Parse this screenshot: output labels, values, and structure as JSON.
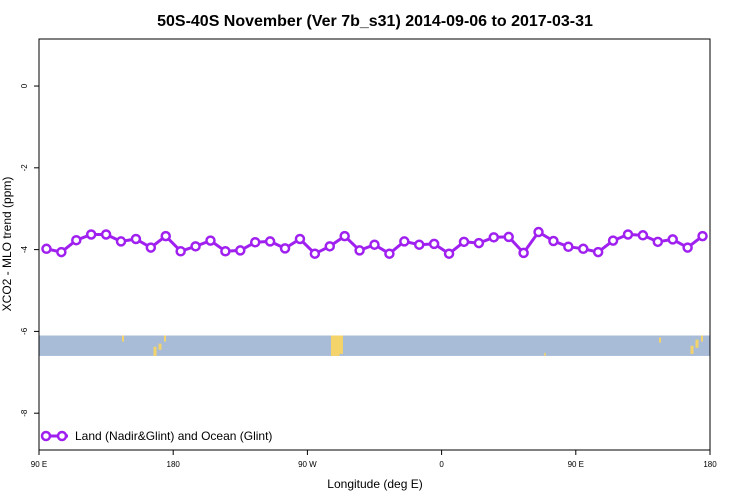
{
  "chart_data": {
    "type": "line",
    "title": "50S-40S November (Ver 7b_s31)   2014-09-06 to 2017-03-31",
    "xlabel": "Longitude (deg E)",
    "ylabel": "XCO2 - MLO trend (ppm)",
    "x_ticks": [
      {
        "value": 90,
        "label": "90 E"
      },
      {
        "value": 180,
        "label": "180"
      },
      {
        "value": 270,
        "label": "90 W"
      },
      {
        "value": 360,
        "label": "0"
      },
      {
        "value": 450,
        "label": "90 E"
      },
      {
        "value": 540,
        "label": "180"
      }
    ],
    "y_ticks": [
      {
        "value": 0,
        "label": "0"
      },
      {
        "value": -2,
        "label": "-2"
      },
      {
        "value": -4,
        "label": "-4"
      },
      {
        "value": -6,
        "label": "-6"
      },
      {
        "value": -8,
        "label": "-8"
      }
    ],
    "xlim": [
      90,
      540
    ],
    "ylim": [
      -8.9,
      1.15
    ],
    "grid": false,
    "legend_position": "bottom-left",
    "series": [
      {
        "name": "Land (Nadir&Glint) and Ocean (Glint)",
        "color": "#a020f0",
        "x": [
          95,
          105,
          115,
          125,
          135,
          145,
          155,
          165,
          175,
          185,
          195,
          205,
          215,
          225,
          235,
          245,
          255,
          265,
          275,
          285,
          295,
          305,
          315,
          325,
          335,
          345,
          355,
          365,
          375,
          385,
          395,
          405,
          415,
          425,
          435,
          445,
          455,
          465,
          475,
          485,
          495,
          505,
          515,
          525,
          535
        ],
        "values": [
          -3.98,
          -4.06,
          -3.77,
          -3.63,
          -3.63,
          -3.8,
          -3.74,
          -3.95,
          -3.67,
          -4.04,
          -3.92,
          -3.78,
          -4.04,
          -4.02,
          -3.82,
          -3.8,
          -3.97,
          -3.74,
          -4.1,
          -3.92,
          -3.67,
          -4.02,
          -3.88,
          -4.1,
          -3.8,
          -3.88,
          -3.86,
          -4.1,
          -3.81,
          -3.84,
          -3.7,
          -3.69,
          -4.08,
          -3.57,
          -3.79,
          -3.93,
          -3.98,
          -4.06,
          -3.78,
          -3.63,
          -3.65,
          -3.81,
          -3.75,
          -3.95,
          -3.67
        ]
      }
    ],
    "map_strip": {
      "y_range": [
        -6.6,
        -6.1
      ],
      "ocean_color": "#a8bcd8",
      "land_color": "#f5d36b"
    }
  }
}
